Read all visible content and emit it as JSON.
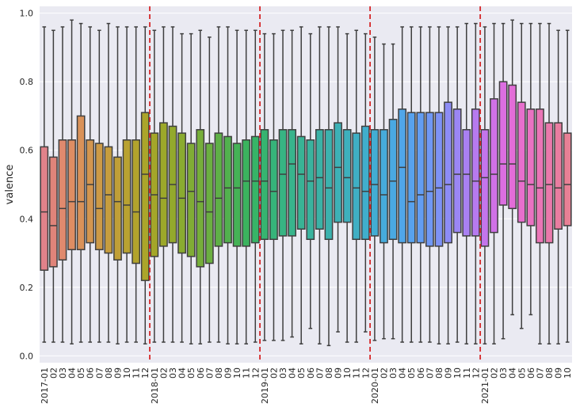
{
  "chart_data": {
    "type": "boxplot",
    "ylabel": "valence",
    "xlabel": "",
    "ylim": [
      -0.02,
      1.02
    ],
    "yticks": [
      "0.0",
      "0.2",
      "0.4",
      "0.6",
      "0.8",
      "1.0"
    ],
    "grid": true,
    "background": "#eaeaf2",
    "categories": [
      "2017-01",
      "02",
      "03",
      "04",
      "05",
      "06",
      "07",
      "08",
      "09",
      "10",
      "11",
      "12",
      "2018-01",
      "02",
      "03",
      "04",
      "05",
      "06",
      "07",
      "08",
      "09",
      "10",
      "11",
      "12",
      "2019-01",
      "02",
      "03",
      "04",
      "05",
      "06",
      "07",
      "08",
      "09",
      "10",
      "11",
      "12",
      "2020-01",
      "02",
      "03",
      "04",
      "05",
      "06",
      "07",
      "08",
      "09",
      "10",
      "11",
      "12",
      "2021-01",
      "02",
      "03",
      "04",
      "05",
      "06",
      "07",
      "08",
      "09",
      "10"
    ],
    "boxes": [
      {
        "q1": 0.25,
        "median": 0.42,
        "q3": 0.61,
        "whislo": 0.04,
        "whishi": 0.96,
        "color": "#e1828a"
      },
      {
        "q1": 0.26,
        "median": 0.38,
        "q3": 0.58,
        "whislo": 0.04,
        "whishi": 0.95,
        "color": "#e0847a"
      },
      {
        "q1": 0.28,
        "median": 0.43,
        "q3": 0.63,
        "whislo": 0.04,
        "whishi": 0.96,
        "color": "#e08a6e"
      },
      {
        "q1": 0.31,
        "median": 0.45,
        "q3": 0.63,
        "whislo": 0.035,
        "whishi": 0.98,
        "color": "#de8d63"
      },
      {
        "q1": 0.31,
        "median": 0.45,
        "q3": 0.7,
        "whislo": 0.04,
        "whishi": 0.97,
        "color": "#d99259"
      },
      {
        "q1": 0.33,
        "median": 0.5,
        "q3": 0.63,
        "whislo": 0.04,
        "whishi": 0.96,
        "color": "#d3964f"
      },
      {
        "q1": 0.31,
        "median": 0.43,
        "q3": 0.62,
        "whislo": 0.04,
        "whishi": 0.95,
        "color": "#cd9a46"
      },
      {
        "q1": 0.3,
        "median": 0.47,
        "q3": 0.61,
        "whislo": 0.04,
        "whishi": 0.97,
        "color": "#c69d3e"
      },
      {
        "q1": 0.28,
        "median": 0.45,
        "q3": 0.58,
        "whislo": 0.035,
        "whishi": 0.96,
        "color": "#c09f37"
      },
      {
        "q1": 0.3,
        "median": 0.44,
        "q3": 0.63,
        "whislo": 0.04,
        "whishi": 0.96,
        "color": "#b9a231"
      },
      {
        "q1": 0.27,
        "median": 0.42,
        "q3": 0.63,
        "whislo": 0.04,
        "whishi": 0.96,
        "color": "#b2a32c"
      },
      {
        "q1": 0.22,
        "median": 0.53,
        "q3": 0.71,
        "whislo": 0.035,
        "whishi": 0.96,
        "color": "#aba52a"
      },
      {
        "q1": 0.29,
        "median": 0.47,
        "q3": 0.65,
        "whislo": 0.04,
        "whishi": 0.95,
        "color": "#a4a629"
      },
      {
        "q1": 0.32,
        "median": 0.46,
        "q3": 0.68,
        "whislo": 0.04,
        "whishi": 0.96,
        "color": "#9ca82a"
      },
      {
        "q1": 0.33,
        "median": 0.5,
        "q3": 0.67,
        "whislo": 0.04,
        "whishi": 0.96,
        "color": "#93a92c"
      },
      {
        "q1": 0.3,
        "median": 0.46,
        "q3": 0.65,
        "whislo": 0.04,
        "whishi": 0.94,
        "color": "#8aab30"
      },
      {
        "q1": 0.29,
        "median": 0.48,
        "q3": 0.62,
        "whislo": 0.035,
        "whishi": 0.94,
        "color": "#80ac35"
      },
      {
        "q1": 0.26,
        "median": 0.45,
        "q3": 0.66,
        "whislo": 0.035,
        "whishi": 0.95,
        "color": "#76ae3a"
      },
      {
        "q1": 0.27,
        "median": 0.42,
        "q3": 0.62,
        "whislo": 0.04,
        "whishi": 0.93,
        "color": "#6baf41"
      },
      {
        "q1": 0.32,
        "median": 0.46,
        "q3": 0.65,
        "whislo": 0.04,
        "whishi": 0.96,
        "color": "#5fb047"
      },
      {
        "q1": 0.33,
        "median": 0.49,
        "q3": 0.64,
        "whislo": 0.035,
        "whishi": 0.96,
        "color": "#52b14e"
      },
      {
        "q1": 0.32,
        "median": 0.49,
        "q3": 0.62,
        "whislo": 0.035,
        "whishi": 0.95,
        "color": "#45b256"
      },
      {
        "q1": 0.32,
        "median": 0.51,
        "q3": 0.63,
        "whislo": 0.035,
        "whishi": 0.95,
        "color": "#3bb35e"
      },
      {
        "q1": 0.33,
        "median": 0.51,
        "q3": 0.64,
        "whislo": 0.04,
        "whishi": 0.95,
        "color": "#37b467"
      },
      {
        "q1": 0.34,
        "median": 0.51,
        "q3": 0.66,
        "whislo": 0.045,
        "whishi": 0.94,
        "color": "#36b470"
      },
      {
        "q1": 0.34,
        "median": 0.48,
        "q3": 0.63,
        "whislo": 0.045,
        "whishi": 0.94,
        "color": "#36b47a"
      },
      {
        "q1": 0.35,
        "median": 0.53,
        "q3": 0.66,
        "whislo": 0.045,
        "whishi": 0.95,
        "color": "#37b483"
      },
      {
        "q1": 0.35,
        "median": 0.56,
        "q3": 0.66,
        "whislo": 0.055,
        "whishi": 0.95,
        "color": "#38b48c"
      },
      {
        "q1": 0.37,
        "median": 0.53,
        "q3": 0.64,
        "whislo": 0.035,
        "whishi": 0.96,
        "color": "#39b395"
      },
      {
        "q1": 0.34,
        "median": 0.51,
        "q3": 0.63,
        "whislo": 0.08,
        "whishi": 0.94,
        "color": "#3ab39e"
      },
      {
        "q1": 0.37,
        "median": 0.52,
        "q3": 0.66,
        "whislo": 0.035,
        "whishi": 0.96,
        "color": "#3bb2a6"
      },
      {
        "q1": 0.34,
        "median": 0.49,
        "q3": 0.66,
        "whislo": 0.03,
        "whishi": 0.96,
        "color": "#3cb2ae"
      },
      {
        "q1": 0.39,
        "median": 0.55,
        "q3": 0.68,
        "whislo": 0.07,
        "whishi": 0.96,
        "color": "#3db1b6"
      },
      {
        "q1": 0.39,
        "median": 0.52,
        "q3": 0.66,
        "whislo": 0.04,
        "whishi": 0.94,
        "color": "#3eb0bd"
      },
      {
        "q1": 0.34,
        "median": 0.49,
        "q3": 0.65,
        "whislo": 0.04,
        "whishi": 0.95,
        "color": "#3fafc4"
      },
      {
        "q1": 0.34,
        "median": 0.48,
        "q3": 0.67,
        "whislo": 0.07,
        "whishi": 0.94,
        "color": "#41aecc"
      },
      {
        "q1": 0.35,
        "median": 0.5,
        "q3": 0.66,
        "whislo": 0.045,
        "whishi": 0.93,
        "color": "#43add3"
      },
      {
        "q1": 0.33,
        "median": 0.47,
        "q3": 0.66,
        "whislo": 0.05,
        "whishi": 0.91,
        "color": "#46abdb"
      },
      {
        "q1": 0.34,
        "median": 0.51,
        "q3": 0.69,
        "whislo": 0.05,
        "whishi": 0.91,
        "color": "#4aa9e2"
      },
      {
        "q1": 0.33,
        "median": 0.55,
        "q3": 0.72,
        "whislo": 0.04,
        "whishi": 0.96,
        "color": "#50a6e9"
      },
      {
        "q1": 0.33,
        "median": 0.45,
        "q3": 0.71,
        "whislo": 0.04,
        "whishi": 0.96,
        "color": "#58a2ee"
      },
      {
        "q1": 0.33,
        "median": 0.47,
        "q3": 0.71,
        "whislo": 0.04,
        "whishi": 0.96,
        "color": "#639df2"
      },
      {
        "q1": 0.32,
        "median": 0.48,
        "q3": 0.71,
        "whislo": 0.04,
        "whishi": 0.96,
        "color": "#7098f4"
      },
      {
        "q1": 0.32,
        "median": 0.49,
        "q3": 0.71,
        "whislo": 0.035,
        "whishi": 0.96,
        "color": "#7e92f5"
      },
      {
        "q1": 0.33,
        "median": 0.5,
        "q3": 0.74,
        "whislo": 0.035,
        "whishi": 0.96,
        "color": "#8d8cf5"
      },
      {
        "q1": 0.36,
        "median": 0.53,
        "q3": 0.72,
        "whislo": 0.04,
        "whishi": 0.96,
        "color": "#9b86f4"
      },
      {
        "q1": 0.35,
        "median": 0.53,
        "q3": 0.66,
        "whislo": 0.035,
        "whishi": 0.97,
        "color": "#a980f2"
      },
      {
        "q1": 0.35,
        "median": 0.51,
        "q3": 0.72,
        "whislo": 0.035,
        "whishi": 0.97,
        "color": "#b77aef"
      },
      {
        "q1": 0.32,
        "median": 0.52,
        "q3": 0.66,
        "whislo": 0.035,
        "whishi": 0.96,
        "color": "#c475ec"
      },
      {
        "q1": 0.36,
        "median": 0.53,
        "q3": 0.75,
        "whislo": 0.035,
        "whishi": 0.97,
        "color": "#d071e7"
      },
      {
        "q1": 0.44,
        "median": 0.56,
        "q3": 0.8,
        "whislo": 0.05,
        "whishi": 0.97,
        "color": "#dc6ee1"
      },
      {
        "q1": 0.43,
        "median": 0.56,
        "q3": 0.79,
        "whislo": 0.12,
        "whishi": 0.98,
        "color": "#e36dd8"
      },
      {
        "q1": 0.39,
        "median": 0.51,
        "q3": 0.74,
        "whislo": 0.08,
        "whishi": 0.97,
        "color": "#e76fcd"
      },
      {
        "q1": 0.38,
        "median": 0.5,
        "q3": 0.72,
        "whislo": 0.12,
        "whishi": 0.97,
        "color": "#e972c2"
      },
      {
        "q1": 0.33,
        "median": 0.49,
        "q3": 0.72,
        "whislo": 0.035,
        "whishi": 0.97,
        "color": "#ea75b6"
      },
      {
        "q1": 0.33,
        "median": 0.5,
        "q3": 0.68,
        "whislo": 0.035,
        "whishi": 0.97,
        "color": "#ea79ab"
      },
      {
        "q1": 0.37,
        "median": 0.49,
        "q3": 0.68,
        "whislo": 0.035,
        "whishi": 0.95,
        "color": "#e97da0"
      },
      {
        "q1": 0.38,
        "median": 0.5,
        "q3": 0.65,
        "whislo": 0.04,
        "whishi": 0.95,
        "color": "#e88095"
      }
    ],
    "vlines": {
      "positions": [
        11.5,
        23.5,
        35.5,
        47.5
      ],
      "color": "#d62728",
      "style": "dashed"
    }
  }
}
